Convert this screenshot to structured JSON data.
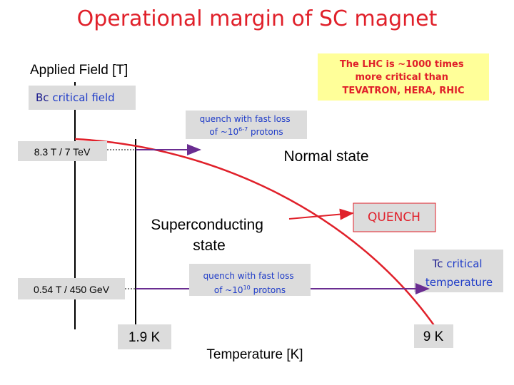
{
  "title": "Operational margin of SC magnet",
  "y_axis_label": "Applied Field [T]",
  "x_axis_label": "Temperature [K]",
  "note": [
    "The LHC is ~1000 times",
    "more critical than",
    "TEVATRON, HERA, RHIC"
  ],
  "bc_label": {
    "symbol": "Bc",
    "text": "critical field"
  },
  "tc_label": {
    "symbol": "Tc",
    "text": "critical",
    "text2": "temperature"
  },
  "high_field": "8.3 T / 7 TeV",
  "low_field": "0.54 T / 450 GeV",
  "quench_high": {
    "line1": "quench with fast loss",
    "line2_prefix": "of ~10",
    "exponent": "6-7",
    "line2_suffix": "protons"
  },
  "quench_low": {
    "line1": "quench with fast loss",
    "line2_prefix": "of ~10",
    "exponent": "10",
    "line2_suffix": "protons"
  },
  "normal_state": "Normal state",
  "sc_state": [
    "Superconducting",
    "state"
  ],
  "quench": "QUENCH",
  "t_operating": "1.9 K",
  "t_critical": "9 K"
}
